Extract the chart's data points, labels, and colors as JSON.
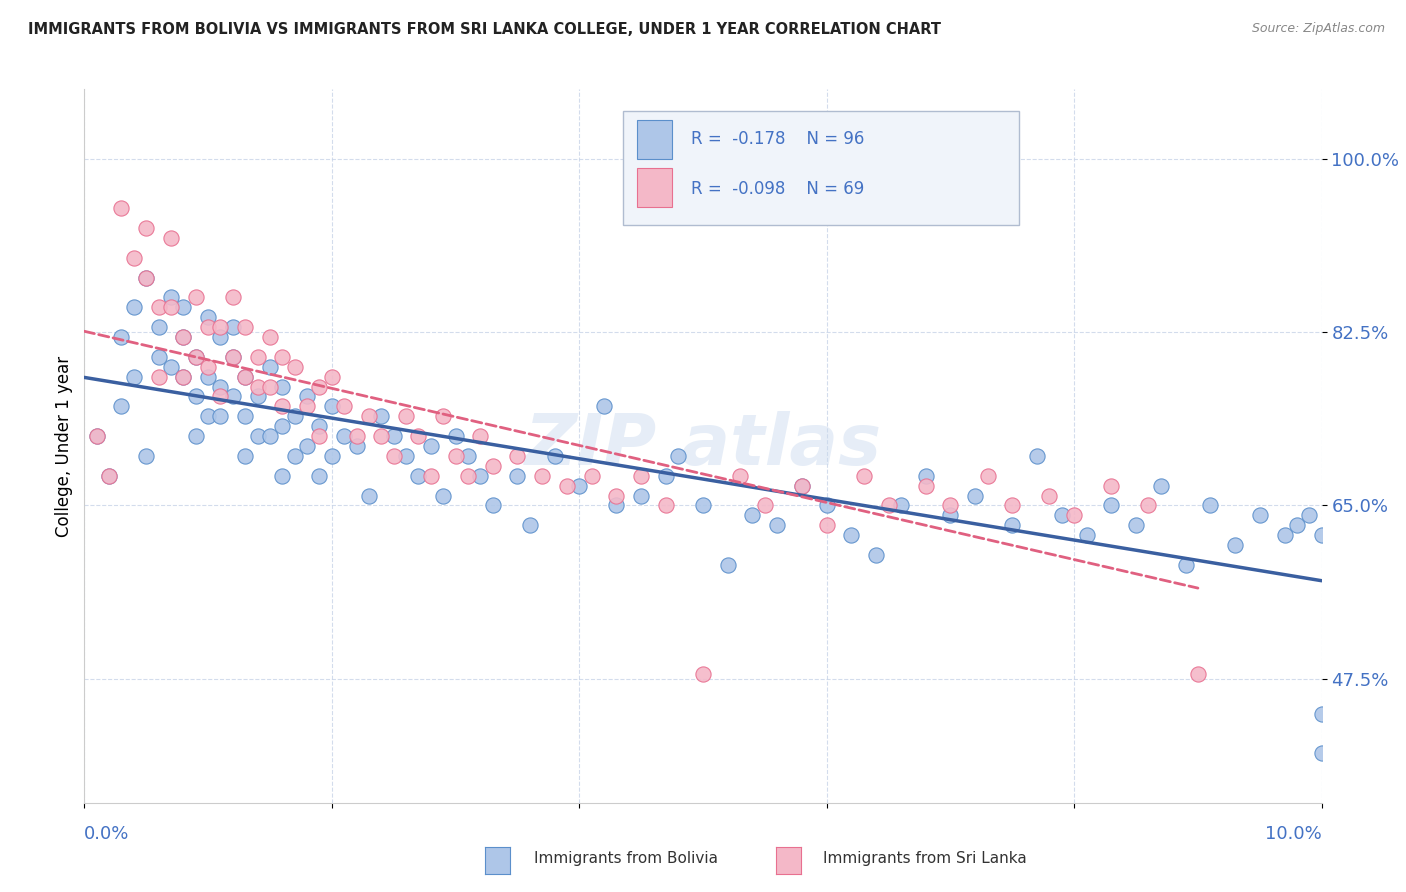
{
  "title": "IMMIGRANTS FROM BOLIVIA VS IMMIGRANTS FROM SRI LANKA COLLEGE, UNDER 1 YEAR CORRELATION CHART",
  "source": "Source: ZipAtlas.com",
  "ylabel": "College, Under 1 year",
  "ytick_labels": [
    "47.5%",
    "65.0%",
    "82.5%",
    "100.0%"
  ],
  "ytick_values": [
    0.475,
    0.65,
    0.825,
    1.0
  ],
  "xlim": [
    0.0,
    0.1
  ],
  "ylim": [
    0.35,
    1.07
  ],
  "legend_r_bolivia": "-0.178",
  "legend_n_bolivia": "96",
  "legend_r_srilanka": "-0.098",
  "legend_n_srilanka": "69",
  "color_bolivia_fill": "#aec6e8",
  "color_bolivia_edge": "#5b8fcb",
  "color_srilanka_fill": "#f4b8c8",
  "color_srilanka_edge": "#e87090",
  "color_bolivia_line": "#3a5fa0",
  "color_srilanka_line": "#e06080",
  "color_axis_text": "#4472c4",
  "bolivia_x": [
    0.001,
    0.002,
    0.003,
    0.003,
    0.004,
    0.004,
    0.005,
    0.005,
    0.006,
    0.006,
    0.007,
    0.007,
    0.008,
    0.008,
    0.008,
    0.009,
    0.009,
    0.009,
    0.01,
    0.01,
    0.01,
    0.011,
    0.011,
    0.011,
    0.012,
    0.012,
    0.012,
    0.013,
    0.013,
    0.013,
    0.014,
    0.014,
    0.015,
    0.015,
    0.016,
    0.016,
    0.016,
    0.017,
    0.017,
    0.018,
    0.018,
    0.019,
    0.019,
    0.02,
    0.02,
    0.021,
    0.022,
    0.023,
    0.024,
    0.025,
    0.026,
    0.027,
    0.028,
    0.029,
    0.03,
    0.031,
    0.032,
    0.033,
    0.035,
    0.036,
    0.038,
    0.04,
    0.042,
    0.043,
    0.045,
    0.047,
    0.048,
    0.05,
    0.052,
    0.054,
    0.056,
    0.058,
    0.06,
    0.062,
    0.064,
    0.066,
    0.068,
    0.07,
    0.072,
    0.075,
    0.077,
    0.079,
    0.081,
    0.083,
    0.085,
    0.087,
    0.089,
    0.091,
    0.093,
    0.095,
    0.097,
    0.098,
    0.099,
    0.1,
    0.1,
    0.1
  ],
  "bolivia_y": [
    0.72,
    0.68,
    0.75,
    0.82,
    0.78,
    0.85,
    0.7,
    0.88,
    0.8,
    0.83,
    0.86,
    0.79,
    0.82,
    0.85,
    0.78,
    0.8,
    0.76,
    0.72,
    0.84,
    0.78,
    0.74,
    0.82,
    0.77,
    0.74,
    0.8,
    0.76,
    0.83,
    0.78,
    0.74,
    0.7,
    0.76,
    0.72,
    0.79,
    0.72,
    0.77,
    0.73,
    0.68,
    0.74,
    0.7,
    0.76,
    0.71,
    0.73,
    0.68,
    0.75,
    0.7,
    0.72,
    0.71,
    0.66,
    0.74,
    0.72,
    0.7,
    0.68,
    0.71,
    0.66,
    0.72,
    0.7,
    0.68,
    0.65,
    0.68,
    0.63,
    0.7,
    0.67,
    0.75,
    0.65,
    0.66,
    0.68,
    0.7,
    0.65,
    0.59,
    0.64,
    0.63,
    0.67,
    0.65,
    0.62,
    0.6,
    0.65,
    0.68,
    0.64,
    0.66,
    0.63,
    0.7,
    0.64,
    0.62,
    0.65,
    0.63,
    0.67,
    0.59,
    0.65,
    0.61,
    0.64,
    0.62,
    0.63,
    0.64,
    0.62,
    0.44,
    0.4
  ],
  "srilanka_x": [
    0.001,
    0.002,
    0.003,
    0.004,
    0.005,
    0.005,
    0.006,
    0.006,
    0.007,
    0.007,
    0.008,
    0.008,
    0.009,
    0.009,
    0.01,
    0.01,
    0.011,
    0.011,
    0.012,
    0.012,
    0.013,
    0.013,
    0.014,
    0.014,
    0.015,
    0.015,
    0.016,
    0.016,
    0.017,
    0.018,
    0.019,
    0.019,
    0.02,
    0.021,
    0.022,
    0.023,
    0.024,
    0.025,
    0.026,
    0.027,
    0.028,
    0.029,
    0.03,
    0.031,
    0.032,
    0.033,
    0.035,
    0.037,
    0.039,
    0.041,
    0.043,
    0.045,
    0.047,
    0.05,
    0.053,
    0.055,
    0.058,
    0.06,
    0.063,
    0.065,
    0.068,
    0.07,
    0.073,
    0.075,
    0.078,
    0.08,
    0.083,
    0.086,
    0.09
  ],
  "srilanka_y": [
    0.72,
    0.68,
    0.95,
    0.9,
    0.93,
    0.88,
    0.85,
    0.78,
    0.92,
    0.85,
    0.82,
    0.78,
    0.86,
    0.8,
    0.83,
    0.79,
    0.83,
    0.76,
    0.86,
    0.8,
    0.78,
    0.83,
    0.8,
    0.77,
    0.82,
    0.77,
    0.8,
    0.75,
    0.79,
    0.75,
    0.77,
    0.72,
    0.78,
    0.75,
    0.72,
    0.74,
    0.72,
    0.7,
    0.74,
    0.72,
    0.68,
    0.74,
    0.7,
    0.68,
    0.72,
    0.69,
    0.7,
    0.68,
    0.67,
    0.68,
    0.66,
    0.68,
    0.65,
    0.48,
    0.68,
    0.65,
    0.67,
    0.63,
    0.68,
    0.65,
    0.67,
    0.65,
    0.68,
    0.65,
    0.66,
    0.64,
    0.67,
    0.65,
    0.48
  ]
}
